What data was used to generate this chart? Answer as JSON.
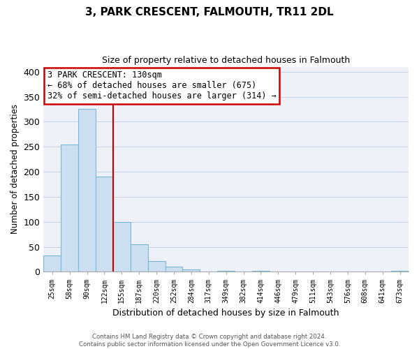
{
  "title1": "3, PARK CRESCENT, FALMOUTH, TR11 2DL",
  "title2": "Size of property relative to detached houses in Falmouth",
  "xlabel": "Distribution of detached houses by size in Falmouth",
  "ylabel": "Number of detached properties",
  "bar_labels": [
    "25sqm",
    "58sqm",
    "90sqm",
    "122sqm",
    "155sqm",
    "187sqm",
    "220sqm",
    "252sqm",
    "284sqm",
    "317sqm",
    "349sqm",
    "382sqm",
    "414sqm",
    "446sqm",
    "479sqm",
    "511sqm",
    "543sqm",
    "576sqm",
    "608sqm",
    "641sqm",
    "673sqm"
  ],
  "bar_values": [
    33,
    255,
    325,
    190,
    100,
    55,
    21,
    10,
    5,
    0,
    2,
    0,
    2,
    0,
    0,
    0,
    0,
    0,
    0,
    0,
    2
  ],
  "bar_color": "#ccdff0",
  "bar_edge_color": "#7ab8d8",
  "vline_color": "#cc0000",
  "ylim": [
    0,
    410
  ],
  "yticks": [
    0,
    50,
    100,
    150,
    200,
    250,
    300,
    350,
    400
  ],
  "annotation_text": "3 PARK CRESCENT: 130sqm\n← 68% of detached houses are smaller (675)\n32% of semi-detached houses are larger (314) →",
  "annotation_box_color": "#ffffff",
  "annotation_box_edge": "#cc0000",
  "footer1": "Contains HM Land Registry data © Crown copyright and database right 2024.",
  "footer2": "Contains public sector information licensed under the Open Government Licence v3.0.",
  "bg_color": "#eef2f8"
}
